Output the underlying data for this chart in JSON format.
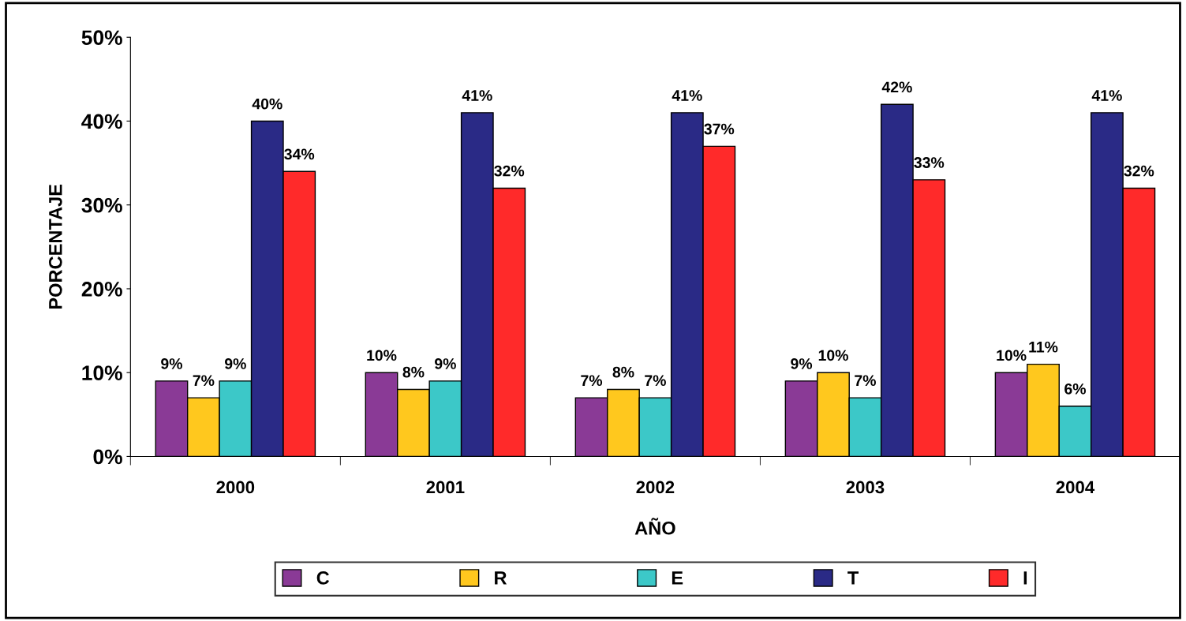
{
  "chart_data": {
    "type": "bar",
    "xlabel": "AÑO",
    "ylabel": "PORCENTAJE",
    "categories": [
      "2000",
      "2001",
      "2002",
      "2003",
      "2004"
    ],
    "series": [
      {
        "name": "C",
        "color": "#8a3a96",
        "values": [
          9,
          10,
          7,
          9,
          10
        ],
        "value_labels": [
          "9%",
          "10%",
          "7%",
          "9%",
          "10%"
        ]
      },
      {
        "name": "R",
        "color": "#ffc81e",
        "values": [
          7,
          8,
          8,
          10,
          11
        ],
        "value_labels": [
          "7%",
          "8%",
          "8%",
          "10%",
          "11%"
        ]
      },
      {
        "name": "E",
        "color": "#3cc8c8",
        "values": [
          9,
          9,
          7,
          7,
          6
        ],
        "value_labels": [
          "9%",
          "9%",
          "7%",
          "7%",
          "6%"
        ]
      },
      {
        "name": "T",
        "color": "#2a2a86",
        "values": [
          40,
          41,
          41,
          42,
          41
        ],
        "value_labels": [
          "40%",
          "41%",
          "41%",
          "42%",
          "41%"
        ]
      },
      {
        "name": "I",
        "color": "#ff2a2a",
        "values": [
          34,
          32,
          37,
          33,
          32
        ],
        "value_labels": [
          "34%",
          "32%",
          "37%",
          "33%",
          "32%"
        ]
      }
    ],
    "ylim": [
      0,
      50
    ],
    "yticks": [
      {
        "value": 0,
        "label": "0%"
      },
      {
        "value": 10,
        "label": "10%"
      },
      {
        "value": 20,
        "label": "20%"
      },
      {
        "value": 30,
        "label": "30%"
      },
      {
        "value": 40,
        "label": "40%"
      },
      {
        "value": 50,
        "label": "50%"
      }
    ],
    "grid": false,
    "legend": "bottom"
  }
}
